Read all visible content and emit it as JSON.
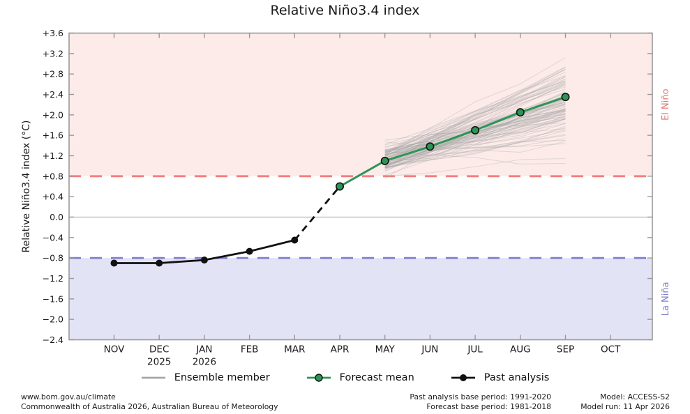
{
  "title": "Relative Niño3.4 index",
  "y_axis_label": "Relative Niño3.4 index (°C)",
  "side_labels": {
    "el_nino": "El Niño",
    "la_nina": "La Niña"
  },
  "colors": {
    "el_nino_region": "#fcebe9",
    "la_nina_region": "#e3e3f6",
    "el_nino_dashed_line": "#f57d7d",
    "la_nina_dashed_line": "#8282d2",
    "el_nino_text": "#dd7b72",
    "la_nina_text": "#8080c8",
    "forecast_green": "#2e9456",
    "ensemble_gray": "#a6a6a6",
    "past_black": "#111111",
    "spine_gray": "#999999",
    "zero_line_gray": "#b5b5b5",
    "tick_text": "#1a1a1a"
  },
  "chart_data": {
    "type": "line",
    "title": "Relative Niño3.4 index",
    "ylabel": "Relative Niño3.4 index (°C)",
    "ylim": [
      -2.4,
      3.6
    ],
    "grid": "zero-line-only",
    "legend_position": "bottom",
    "y_ticks": [
      {
        "value": 3.6,
        "label": "+3.6"
      },
      {
        "value": 3.2,
        "label": "+3.2"
      },
      {
        "value": 2.8,
        "label": "+2.8"
      },
      {
        "value": 2.4,
        "label": "+2.4"
      },
      {
        "value": 2.0,
        "label": "+2.0"
      },
      {
        "value": 1.6,
        "label": "+1.6"
      },
      {
        "value": 1.2,
        "label": "+1.2"
      },
      {
        "value": 0.8,
        "label": "+0.8"
      },
      {
        "value": 0.4,
        "label": "+0.4"
      },
      {
        "value": 0.0,
        "label": "0.0"
      },
      {
        "value": -0.4,
        "label": "−0.4"
      },
      {
        "value": -0.8,
        "label": "−0.8"
      },
      {
        "value": -1.2,
        "label": "−1.2"
      },
      {
        "value": -1.6,
        "label": "−1.6"
      },
      {
        "value": -2.0,
        "label": "−2.0"
      },
      {
        "value": -2.4,
        "label": "−2.4"
      }
    ],
    "categories": [
      "NOV",
      "DEC",
      "JAN",
      "FEB",
      "MAR",
      "APR",
      "MAY",
      "JUN",
      "JUL",
      "AUG",
      "SEP",
      "OCT"
    ],
    "year_labels": [
      {
        "month_index": 1,
        "label": "2025"
      },
      {
        "month_index": 2,
        "label": "2026"
      }
    ],
    "thresholds": {
      "el_nino": 0.8,
      "la_nina": -0.8
    },
    "series": [
      {
        "name": "Past analysis",
        "style": "solid-black-dots",
        "month_indices": [
          0,
          1,
          2,
          3,
          4
        ],
        "values": [
          -0.9,
          -0.9,
          -0.84,
          -0.67,
          -0.45
        ]
      },
      {
        "name": "Past-to-forecast transition",
        "style": "dashed-black",
        "month_indices": [
          4,
          5
        ],
        "values": [
          -0.45,
          0.6
        ]
      },
      {
        "name": "Forecast mean",
        "style": "solid-green-circles",
        "month_indices": [
          5,
          6,
          7,
          8,
          9,
          10
        ],
        "values": [
          0.6,
          1.1,
          1.38,
          1.7,
          2.05,
          2.35
        ]
      }
    ],
    "ensemble": {
      "name": "Ensemble member",
      "count": 96,
      "month_indices": [
        6,
        7,
        8,
        9,
        10
      ],
      "start_mean": 1.12,
      "start_sd": 0.14,
      "start_min": 0.76,
      "start_max": 1.55,
      "end_mean": 2.25,
      "end_sd": 0.46,
      "end_min": 1.05,
      "end_max": 3.12,
      "seed": 20260411
    }
  },
  "legend": {
    "items": [
      {
        "label": "Ensemble member",
        "type": "ensemble"
      },
      {
        "label": "Forecast mean",
        "type": "forecast"
      },
      {
        "label": "Past analysis",
        "type": "past"
      }
    ]
  },
  "footer": {
    "site": "www.bom.gov.au/climate",
    "copyright": "Commonwealth of Australia 2026, Australian Bureau of Meteorology",
    "past_base_period": "Past analysis base period: 1991-2020",
    "forecast_base_period": "Forecast base period: 1981-2018",
    "model": "Model: ACCESS-S2",
    "model_run": "Model run: 11 Apr 2026"
  }
}
